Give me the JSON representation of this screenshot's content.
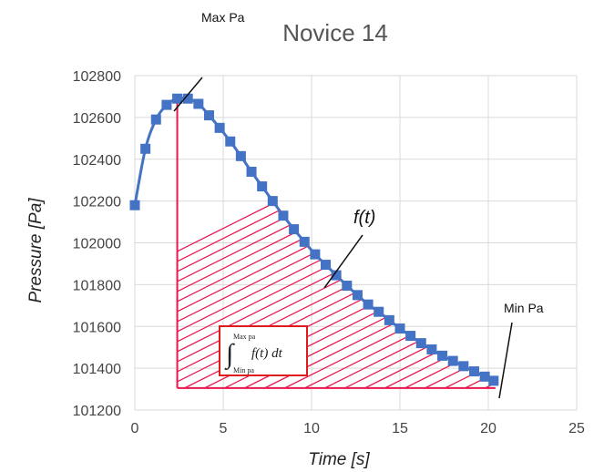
{
  "chart_data": {
    "type": "scatter",
    "title": "Novice 14",
    "xlabel": "Time [s]",
    "ylabel": "Pressure [Pa]",
    "xlim": [
      0,
      25
    ],
    "ylim": [
      101200,
      102800
    ],
    "xticks": [
      "0",
      "5",
      "10",
      "15",
      "20",
      "25"
    ],
    "yticks": [
      "101200",
      "101400",
      "101600",
      "101800",
      "102000",
      "102200",
      "102400",
      "102600",
      "102800"
    ],
    "grid": true,
    "series": [
      {
        "color": "#4472C4",
        "marker": "square",
        "x": [
          0,
          0.6,
          1.2,
          1.8,
          2.4,
          3.0,
          3.6,
          4.2,
          4.8,
          5.4,
          6.0,
          6.6,
          7.2,
          7.8,
          8.4,
          9.0,
          9.6,
          10.2,
          10.8,
          11.4,
          12.0,
          12.6,
          13.2,
          13.8,
          14.4,
          15.0,
          15.6,
          16.2,
          16.8,
          17.4,
          18.0,
          18.6,
          19.2,
          19.8,
          20.3
        ],
        "y": [
          102180,
          102450,
          102590,
          102660,
          102690,
          102690,
          102665,
          102610,
          102550,
          102485,
          102415,
          102340,
          102270,
          102200,
          102130,
          102065,
          102005,
          101945,
          101895,
          101845,
          101795,
          101750,
          101705,
          101670,
          101630,
          101590,
          101555,
          101520,
          101490,
          101460,
          101435,
          101410,
          101385,
          101360,
          101340
        ]
      }
    ],
    "annotations": {
      "max_label": "Max Pa",
      "min_label": "Min Pa",
      "curve_label": "f(t)",
      "integral": {
        "upper": "Max pa",
        "lower": "Min pa",
        "body": "f(t) dt"
      }
    },
    "shading_color": "#E8174E"
  }
}
